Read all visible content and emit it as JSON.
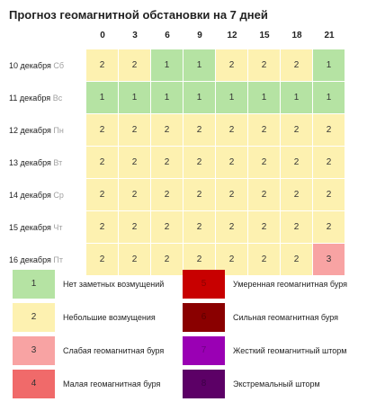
{
  "title": "Прогноз геомагнитной обстановки на 7 дней",
  "hours": [
    "0",
    "3",
    "6",
    "9",
    "12",
    "15",
    "18",
    "21"
  ],
  "days": [
    {
      "date": "10 декабря",
      "dow": "Сб",
      "values": [
        "2",
        "2",
        "1",
        "1",
        "2",
        "2",
        "2",
        "1"
      ]
    },
    {
      "date": "11 декабря",
      "dow": "Вс",
      "values": [
        "1",
        "1",
        "1",
        "1",
        "1",
        "1",
        "1",
        "1"
      ]
    },
    {
      "date": "12 декабря",
      "dow": "Пн",
      "values": [
        "2",
        "2",
        "2",
        "2",
        "2",
        "2",
        "2",
        "2"
      ]
    },
    {
      "date": "13 декабря",
      "dow": "Вт",
      "values": [
        "2",
        "2",
        "2",
        "2",
        "2",
        "2",
        "2",
        "2"
      ]
    },
    {
      "date": "14 декабря",
      "dow": "Ср",
      "values": [
        "2",
        "2",
        "2",
        "2",
        "2",
        "2",
        "2",
        "2"
      ]
    },
    {
      "date": "15 декабря",
      "dow": "Чт",
      "values": [
        "2",
        "2",
        "2",
        "2",
        "2",
        "2",
        "2",
        "2"
      ]
    },
    {
      "date": "16 декабря",
      "dow": "Пт",
      "values": [
        "2",
        "2",
        "2",
        "2",
        "2",
        "2",
        "2",
        "3"
      ]
    }
  ],
  "level_colors": {
    "1": "#b5e3a3",
    "2": "#fdf1b0",
    "3": "#f8a3a3",
    "4": "#f06a6a",
    "5": "#c80000",
    "6": "#8a0000",
    "7": "#9a00b4",
    "8": "#5c0066"
  },
  "level_text_colors": {
    "1": "#333333",
    "2": "#333333",
    "3": "#333333",
    "4": "#333333",
    "5": "#8c0000",
    "6": "#5a0000",
    "7": "#6e0082",
    "8": "#3c0046"
  },
  "legend": [
    {
      "level": "1",
      "label": "Нет заметных возмущений"
    },
    {
      "level": "2",
      "label": "Небольшие возмущения"
    },
    {
      "level": "3",
      "label": "Слабая геомагнитная буря"
    },
    {
      "level": "4",
      "label": "Малая геомагнитная буря"
    },
    {
      "level": "5",
      "label": "Умеренная геомагнитная буря"
    },
    {
      "level": "6",
      "label": "Сильная геомагнитная буря"
    },
    {
      "level": "7",
      "label": "Жесткий геомагнитный шторм"
    },
    {
      "level": "8",
      "label": "Экстремальный шторм"
    }
  ]
}
